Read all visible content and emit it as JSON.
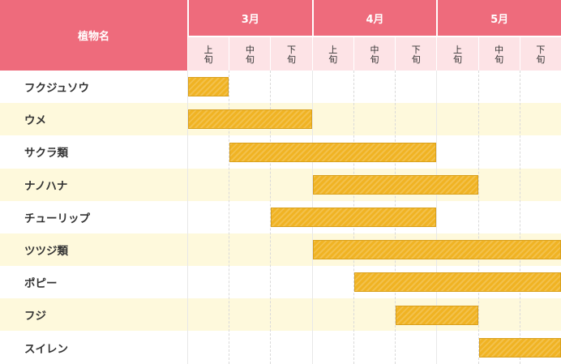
{
  "header": {
    "plant_label": "植物名",
    "months": [
      "3月",
      "4月",
      "5月"
    ],
    "periods": [
      "上旬",
      "中旬",
      "下旬"
    ]
  },
  "chart_data": {
    "type": "bar",
    "title": "",
    "xlabel": "",
    "ylabel": "植物名",
    "x_categories": [
      "3月上旬",
      "3月中旬",
      "3月下旬",
      "4月上旬",
      "4月中旬",
      "4月下旬",
      "5月上旬",
      "5月中旬",
      "5月下旬"
    ],
    "rows": [
      {
        "name": "フクジュソウ",
        "start": 0,
        "end": 1
      },
      {
        "name": "ウメ",
        "start": 0,
        "end": 3
      },
      {
        "name": "サクラ類",
        "start": 1,
        "end": 6
      },
      {
        "name": "ナノハナ",
        "start": 3,
        "end": 7
      },
      {
        "name": "チューリップ",
        "start": 2,
        "end": 6
      },
      {
        "name": "ツツジ類",
        "start": 3,
        "end": 9
      },
      {
        "name": "ポピー",
        "start": 4,
        "end": 9
      },
      {
        "name": "フジ",
        "start": 5,
        "end": 7
      },
      {
        "name": "スイレン",
        "start": 7,
        "end": 9
      }
    ],
    "colors": {
      "header": "#ee6b7c",
      "header_sub": "#fde3e6",
      "bar": "#f0b323",
      "row_alt": "#fef9dc"
    }
  }
}
